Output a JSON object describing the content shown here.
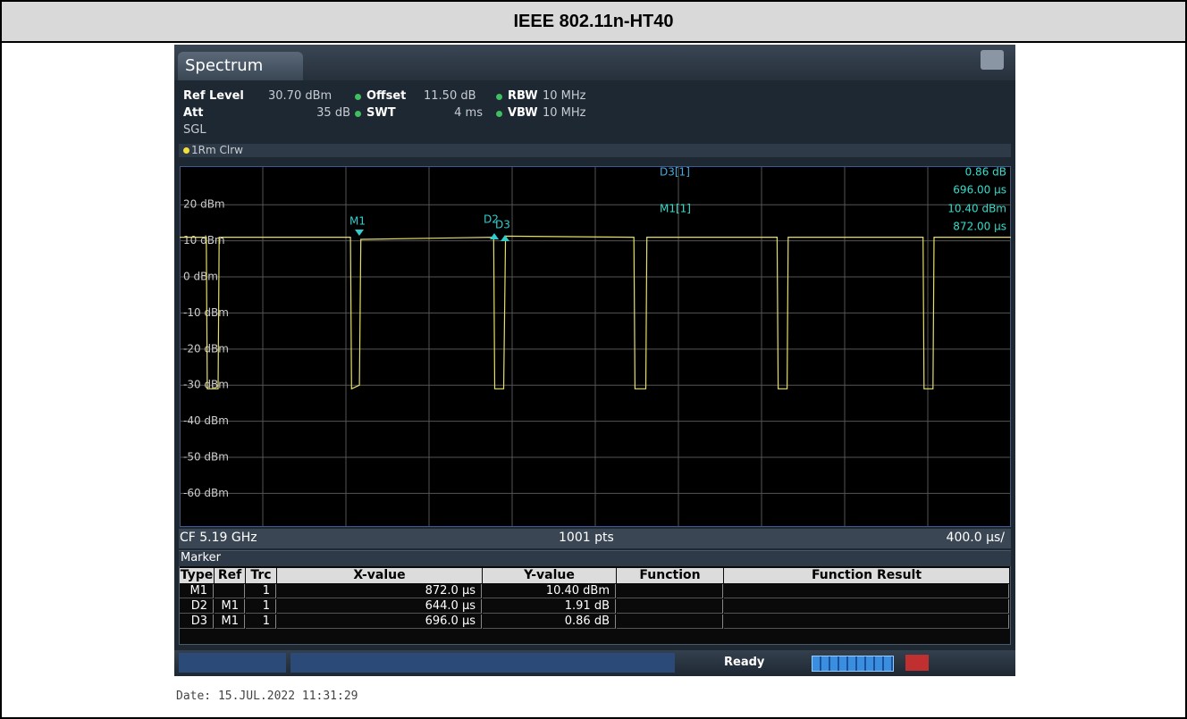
{
  "header": {
    "title": "IEEE 802.11n-HT40"
  },
  "instrument": {
    "tab": "Spectrum",
    "settings": [
      [
        "Ref Level",
        "30.70 dBm"
      ],
      [
        "Offset",
        "11.50 dB"
      ],
      [
        "RBW",
        "10 MHz"
      ],
      [
        "Att",
        "35 dB"
      ],
      [
        "SWT",
        "4 ms"
      ],
      [
        "VBW",
        "10 MHz"
      ]
    ],
    "sweep_mode": "SGL",
    "trace_label": "1Rm Clrw",
    "marker_readout": [
      {
        "name": "D3[1]",
        "values": [
          "0.86 dB",
          "696.00 µs"
        ]
      },
      {
        "name": "M1[1]",
        "values": [
          "10.40 dBm",
          "872.00 µs"
        ]
      }
    ],
    "marker_labels": [
      "M1",
      "D2",
      "D3"
    ],
    "footer": {
      "center_freq": "CF 5.19 GHz",
      "points": "1001 pts",
      "span_per_div": "400.0 µs/"
    },
    "marker_table": {
      "title": "Marker",
      "columns": [
        "Type",
        "Ref",
        "Trc",
        "X-value",
        "Y-value",
        "Function",
        "Function Result"
      ],
      "rows": [
        [
          "M1",
          null,
          "1",
          "872.0 µs",
          "10.40 dBm",
          null,
          null
        ],
        [
          "D2",
          "M1",
          "1",
          "644.0 µs",
          "1.91 dB",
          null,
          null
        ],
        [
          "D3",
          "M1",
          "1",
          "696.0 µs",
          "0.86 dB",
          null,
          null
        ]
      ]
    },
    "status": "Ready",
    "date": "Date: 15.JUL.2022  11:31:29"
  },
  "chart_data": {
    "type": "line",
    "color": "#e6df6a",
    "x": [
      0,
      128,
      133,
      185,
      190,
      822,
      827,
      865,
      872,
      1511,
      1516,
      1559,
      1568,
      2186,
      2191,
      2243,
      2248,
      2875,
      2880,
      2923,
      2928,
      3577,
      3582,
      3625,
      3630,
      4000
    ],
    "values": [
      11,
      11,
      -31,
      -31,
      11,
      11,
      -31,
      -30,
      10.4,
      11,
      -31,
      -31,
      11.3,
      11,
      -31,
      -31,
      11,
      11,
      -31,
      -31,
      11,
      11,
      -31,
      -31,
      11,
      11
    ],
    "xlim": [
      0,
      4000
    ],
    "xticks": [
      0,
      400,
      800,
      1200,
      1600,
      2000,
      2400,
      2800,
      3200,
      3600,
      4000
    ],
    "ylim": [
      -69.3,
      30.7
    ],
    "yticks": [
      {
        "value": 20,
        "label": "20 dBm"
      },
      {
        "value": 10,
        "label": "10 dBm"
      },
      {
        "value": 0,
        "label": "0 dBm"
      },
      {
        "value": -10,
        "label": "-10 dBm"
      },
      {
        "value": -20,
        "label": "-20 dBm"
      },
      {
        "value": -30,
        "label": "-30 dBm"
      },
      {
        "value": -40,
        "label": "-40 dBm"
      },
      {
        "value": -50,
        "label": "-50 dBm"
      },
      {
        "value": -60,
        "label": "-60 dBm"
      }
    ],
    "grid": true
  }
}
